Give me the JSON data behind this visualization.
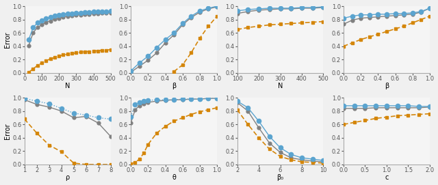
{
  "panels": [
    {
      "xlabel": "N",
      "xlim": [
        0,
        500
      ],
      "xticks": [
        0,
        100,
        200,
        300,
        400,
        500
      ],
      "ylim": [
        0,
        1.0
      ],
      "yticks": [
        0.0,
        0.2,
        0.4,
        0.6,
        0.8,
        1.0
      ],
      "blue": {
        "x": [
          25,
          50,
          75,
          100,
          125,
          150,
          175,
          200,
          225,
          250,
          275,
          300,
          325,
          350,
          375,
          400,
          425,
          450,
          475,
          500
        ],
        "y": [
          0.5,
          0.68,
          0.75,
          0.79,
          0.82,
          0.84,
          0.86,
          0.87,
          0.88,
          0.89,
          0.89,
          0.9,
          0.9,
          0.91,
          0.91,
          0.92,
          0.92,
          0.92,
          0.92,
          0.93
        ]
      },
      "gray": {
        "x": [
          25,
          50,
          75,
          100,
          125,
          150,
          175,
          200,
          225,
          250,
          275,
          300,
          325,
          350,
          375,
          400,
          425,
          450,
          475,
          500
        ],
        "y": [
          0.41,
          0.6,
          0.68,
          0.72,
          0.76,
          0.78,
          0.81,
          0.82,
          0.84,
          0.85,
          0.86,
          0.87,
          0.87,
          0.88,
          0.88,
          0.89,
          0.89,
          0.9,
          0.9,
          0.9
        ]
      },
      "orange": {
        "x": [
          25,
          50,
          75,
          100,
          125,
          150,
          175,
          200,
          225,
          250,
          275,
          300,
          325,
          350,
          375,
          400,
          425,
          450,
          475,
          500
        ],
        "y": [
          0.01,
          0.06,
          0.11,
          0.15,
          0.18,
          0.21,
          0.23,
          0.25,
          0.27,
          0.28,
          0.29,
          0.3,
          0.31,
          0.32,
          0.32,
          0.33,
          0.33,
          0.34,
          0.34,
          0.35
        ]
      }
    },
    {
      "xlabel": "β",
      "xlim": [
        0,
        1.0
      ],
      "xticks": [
        0.0,
        0.2,
        0.4,
        0.6,
        0.8,
        1.0
      ],
      "ylim": [
        0,
        1.0
      ],
      "yticks": [
        0.0,
        0.2,
        0.4,
        0.6,
        0.8,
        1.0
      ],
      "blue": {
        "x": [
          0.0,
          0.1,
          0.2,
          0.3,
          0.4,
          0.5,
          0.6,
          0.7,
          0.8,
          0.9,
          1.0
        ],
        "y": [
          0.03,
          0.15,
          0.25,
          0.38,
          0.5,
          0.6,
          0.74,
          0.85,
          0.93,
          0.97,
          1.0
        ]
      },
      "gray": {
        "x": [
          0.0,
          0.1,
          0.2,
          0.3,
          0.4,
          0.5,
          0.6,
          0.7,
          0.8,
          0.9,
          1.0
        ],
        "y": [
          0.01,
          0.1,
          0.19,
          0.3,
          0.45,
          0.57,
          0.72,
          0.83,
          0.91,
          0.96,
          0.99
        ]
      },
      "orange": {
        "x": [
          0.5,
          0.6,
          0.7,
          0.8,
          0.9,
          1.0
        ],
        "y": [
          0.02,
          0.12,
          0.3,
          0.52,
          0.7,
          0.85
        ]
      }
    },
    {
      "xlabel": "N",
      "xlim": [
        100,
        500
      ],
      "xticks": [
        100,
        200,
        300,
        400,
        500
      ],
      "ylim": [
        0,
        1.0
      ],
      "yticks": [
        0.0,
        0.2,
        0.4,
        0.6,
        0.8,
        1.0
      ],
      "blue": {
        "x": [
          100,
          150,
          200,
          250,
          300,
          350,
          400,
          450,
          500
        ],
        "y": [
          0.93,
          0.95,
          0.96,
          0.97,
          0.97,
          0.97,
          0.98,
          0.98,
          0.99
        ]
      },
      "gray": {
        "x": [
          100,
          150,
          200,
          250,
          300,
          350,
          400,
          450,
          500
        ],
        "y": [
          0.89,
          0.92,
          0.94,
          0.95,
          0.96,
          0.96,
          0.97,
          0.97,
          0.98
        ]
      },
      "orange": {
        "x": [
          100,
          150,
          200,
          250,
          300,
          350,
          400,
          450,
          500
        ],
        "y": [
          0.65,
          0.68,
          0.7,
          0.72,
          0.73,
          0.74,
          0.75,
          0.76,
          0.77
        ]
      }
    },
    {
      "xlabel": "β",
      "xlim": [
        0,
        1.0
      ],
      "xticks": [
        0.0,
        0.2,
        0.4,
        0.6,
        0.8,
        1.0
      ],
      "ylim": [
        0,
        1.0
      ],
      "yticks": [
        0.0,
        0.2,
        0.4,
        0.6,
        0.8,
        1.0
      ],
      "blue": {
        "x": [
          0.0,
          0.1,
          0.2,
          0.3,
          0.4,
          0.5,
          0.6,
          0.7,
          0.8,
          0.9,
          1.0
        ],
        "y": [
          0.82,
          0.85,
          0.87,
          0.87,
          0.88,
          0.88,
          0.89,
          0.89,
          0.9,
          0.92,
          0.97
        ]
      },
      "gray": {
        "x": [
          0.0,
          0.1,
          0.2,
          0.3,
          0.4,
          0.5,
          0.6,
          0.7,
          0.8,
          0.9,
          1.0
        ],
        "y": [
          0.73,
          0.79,
          0.82,
          0.83,
          0.84,
          0.85,
          0.86,
          0.87,
          0.88,
          0.91,
          0.97
        ]
      },
      "orange": {
        "x": [
          0.0,
          0.1,
          0.2,
          0.3,
          0.4,
          0.5,
          0.6,
          0.7,
          0.8,
          0.9,
          1.0
        ],
        "y": [
          0.4,
          0.45,
          0.5,
          0.54,
          0.58,
          0.62,
          0.66,
          0.7,
          0.75,
          0.8,
          0.85
        ]
      }
    },
    {
      "xlabel": "ρ",
      "xlim": [
        1,
        8
      ],
      "xticks": [
        1,
        2,
        3,
        4,
        5,
        6,
        7,
        8
      ],
      "ylim": [
        0,
        1.0
      ],
      "yticks": [
        0.0,
        0.2,
        0.4,
        0.6,
        0.8,
        1.0
      ],
      "blue": {
        "x": [
          1,
          2,
          3,
          4,
          5,
          6,
          7,
          8
        ],
        "y": [
          0.99,
          0.95,
          0.91,
          0.84,
          0.77,
          0.74,
          0.7,
          0.68
        ]
      },
      "gray": {
        "x": [
          1,
          2,
          3,
          4,
          5,
          6,
          7,
          8
        ],
        "y": [
          0.97,
          0.9,
          0.86,
          0.8,
          0.7,
          0.72,
          0.62,
          0.42
        ]
      },
      "orange": {
        "x": [
          1,
          2,
          3,
          4,
          5,
          6,
          7,
          8
        ],
        "y": [
          0.68,
          0.47,
          0.29,
          0.19,
          0.02,
          0.0,
          0.0,
          0.0
        ]
      }
    },
    {
      "xlabel": "θ",
      "xlim": [
        0,
        1.0
      ],
      "xticks": [
        0.0,
        0.2,
        0.4,
        0.6,
        0.8,
        1.0
      ],
      "ylim": [
        0,
        1.0
      ],
      "yticks": [
        0.0,
        0.2,
        0.4,
        0.6,
        0.8,
        1.0
      ],
      "blue": {
        "x": [
          0.0,
          0.05,
          0.1,
          0.15,
          0.2,
          0.3,
          0.4,
          0.5,
          0.6,
          0.7,
          0.8,
          0.9,
          1.0
        ],
        "y": [
          0.72,
          0.9,
          0.93,
          0.95,
          0.96,
          0.97,
          0.97,
          0.97,
          0.98,
          0.98,
          0.98,
          0.99,
          0.99
        ]
      },
      "gray": {
        "x": [
          0.0,
          0.05,
          0.1,
          0.15,
          0.2,
          0.3,
          0.4,
          0.5,
          0.6,
          0.7,
          0.8,
          0.9,
          1.0
        ],
        "y": [
          0.62,
          0.82,
          0.88,
          0.91,
          0.93,
          0.95,
          0.96,
          0.97,
          0.97,
          0.98,
          0.98,
          0.99,
          0.99
        ]
      },
      "orange": {
        "x": [
          0.0,
          0.05,
          0.1,
          0.15,
          0.2,
          0.3,
          0.4,
          0.5,
          0.6,
          0.7,
          0.8,
          0.9,
          1.0
        ],
        "y": [
          0.01,
          0.03,
          0.08,
          0.17,
          0.3,
          0.47,
          0.57,
          0.65,
          0.7,
          0.75,
          0.79,
          0.82,
          0.85
        ]
      }
    },
    {
      "xlabel": "β₀",
      "xlim": [
        2,
        10
      ],
      "xticks": [
        2,
        4,
        6,
        8,
        10
      ],
      "ylim": [
        0,
        1.0
      ],
      "yticks": [
        0.0,
        0.2,
        0.4,
        0.6,
        0.8,
        1.0
      ],
      "blue": {
        "x": [
          2,
          3,
          4,
          5,
          6,
          7,
          8,
          9,
          10
        ],
        "y": [
          0.95,
          0.85,
          0.65,
          0.42,
          0.25,
          0.15,
          0.1,
          0.08,
          0.06
        ]
      },
      "gray": {
        "x": [
          2,
          3,
          4,
          5,
          6,
          7,
          8,
          9,
          10
        ],
        "y": [
          0.93,
          0.8,
          0.55,
          0.32,
          0.18,
          0.1,
          0.07,
          0.05,
          0.04
        ]
      },
      "orange": {
        "x": [
          2,
          3,
          4,
          5,
          6,
          7,
          8,
          9,
          10
        ],
        "y": [
          0.82,
          0.6,
          0.4,
          0.23,
          0.12,
          0.07,
          0.04,
          0.03,
          0.02
        ]
      }
    },
    {
      "xlabel": "c",
      "xlim": [
        0,
        2.0
      ],
      "xticks": [
        0.0,
        0.5,
        1.0,
        1.5,
        2.0
      ],
      "ylim": [
        0,
        1.0
      ],
      "yticks": [
        0.0,
        0.2,
        0.4,
        0.6,
        0.8,
        1.0
      ],
      "blue": {
        "x": [
          0.0,
          0.25,
          0.5,
          0.75,
          1.0,
          1.25,
          1.5,
          1.75,
          2.0
        ],
        "y": [
          0.88,
          0.88,
          0.88,
          0.88,
          0.88,
          0.88,
          0.88,
          0.87,
          0.87
        ]
      },
      "gray": {
        "x": [
          0.0,
          0.25,
          0.5,
          0.75,
          1.0,
          1.25,
          1.5,
          1.75,
          2.0
        ],
        "y": [
          0.84,
          0.84,
          0.84,
          0.85,
          0.85,
          0.85,
          0.85,
          0.85,
          0.86
        ]
      },
      "orange": {
        "x": [
          0.0,
          0.25,
          0.5,
          0.75,
          1.0,
          1.25,
          1.5,
          1.75,
          2.0
        ],
        "y": [
          0.6,
          0.63,
          0.66,
          0.69,
          0.71,
          0.73,
          0.74,
          0.75,
          0.76
        ]
      }
    }
  ],
  "blue_color": "#5BA4CF",
  "gray_color": "#808080",
  "orange_color": "#D4860A",
  "ylabel": "Error",
  "marker_blue": "o",
  "marker_gray": "o",
  "marker_orange": "s"
}
